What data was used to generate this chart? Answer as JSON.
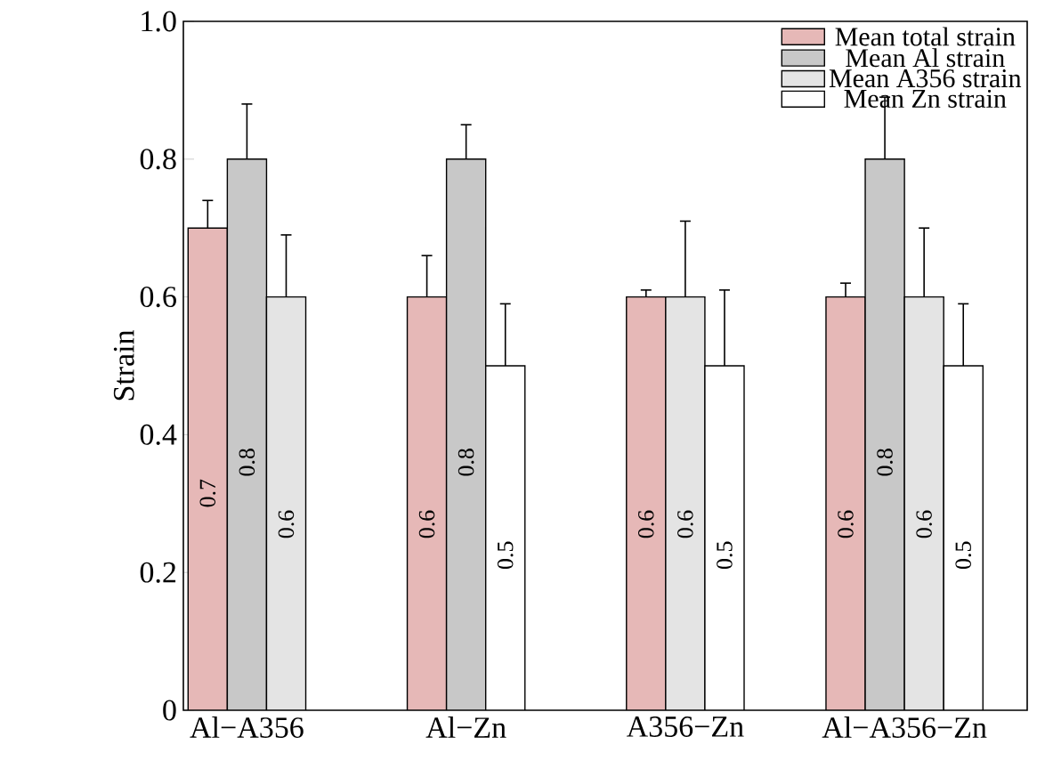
{
  "chart_data": {
    "type": "bar",
    "ylabel": "Strain",
    "categories": [
      "Al−A356",
      "Al−Zn",
      "A356−Zn",
      "Al−A356−Zn"
    ],
    "ylim": [
      0,
      1
    ],
    "yticks": [
      0,
      0.2,
      0.4,
      0.6,
      0.8,
      {
        "value": 1,
        "label": "1.0"
      }
    ],
    "legend": "top right",
    "data_labels": true,
    "grid": false,
    "series": [
      {
        "name": "Mean total strain",
        "color": "#e6b8b7",
        "values": [
          0.7,
          0.6,
          0.6,
          0.6
        ],
        "errors": [
          [
            0.7,
            0.74
          ],
          [
            0.6,
            0.66
          ],
          [
            0.6,
            0.61
          ],
          [
            0.6,
            0.62
          ]
        ]
      },
      {
        "name": "Mean Al strain",
        "color": "#c8c8c8",
        "values": [
          0.8,
          0.8,
          null,
          0.8
        ],
        "errors": [
          [
            0.8,
            0.88
          ],
          [
            0.8,
            0.85
          ],
          null,
          [
            0.8,
            0.89
          ]
        ]
      },
      {
        "name": "Mean A356 strain",
        "color": "#e4e4e4",
        "values": [
          0.6,
          null,
          0.6,
          0.6
        ],
        "errors": [
          [
            0.6,
            0.69
          ],
          null,
          [
            0.6,
            0.71
          ],
          [
            0.6,
            0.7
          ]
        ]
      },
      {
        "name": "Mean Zn strain",
        "color": "#ffffff",
        "values": [
          null,
          0.5,
          0.5,
          0.5
        ],
        "errors": [
          null,
          [
            0.5,
            0.59
          ],
          [
            0.5,
            0.61
          ],
          [
            0.5,
            0.59
          ]
        ]
      }
    ]
  }
}
